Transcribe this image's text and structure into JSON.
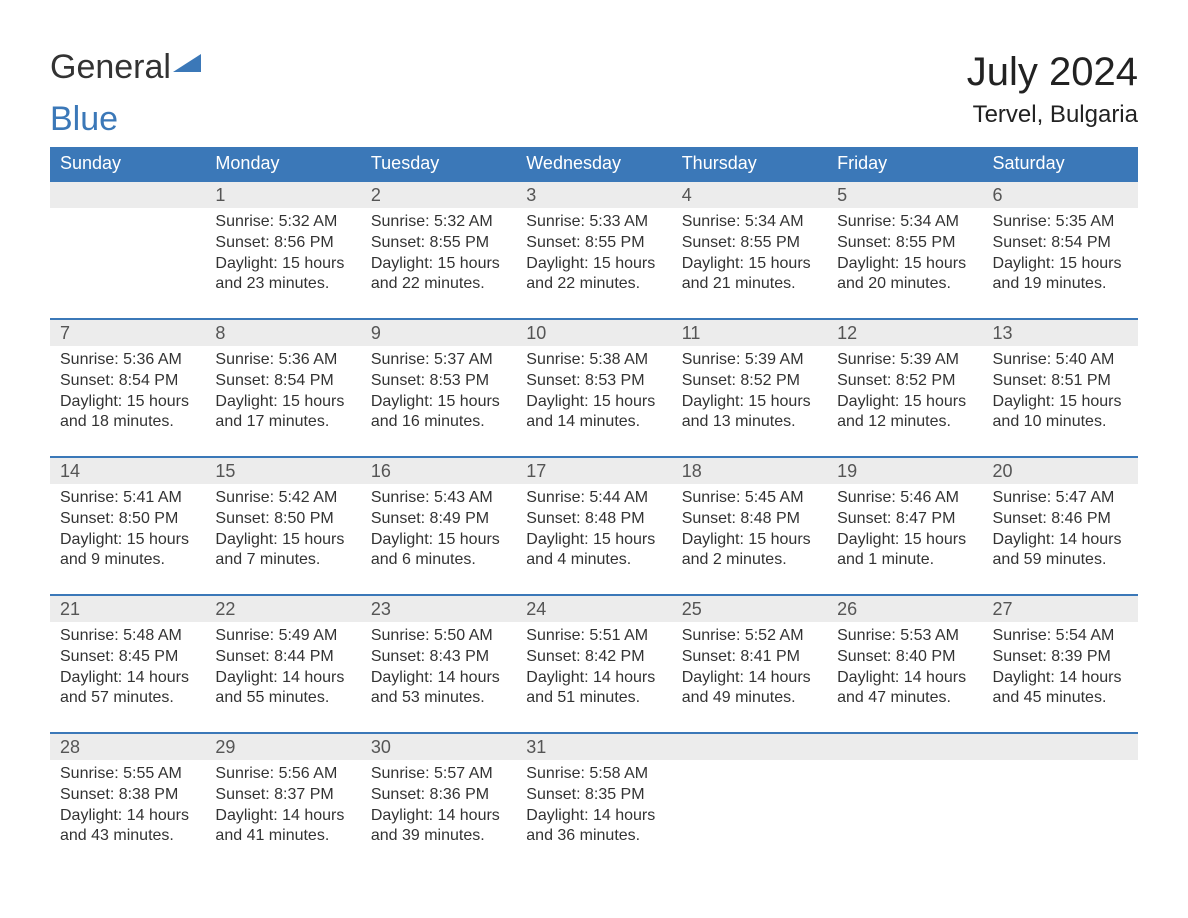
{
  "logo": {
    "word1": "General",
    "word2": "Blue"
  },
  "title": "July 2024",
  "location": "Tervel, Bulgaria",
  "colors": {
    "header_bg": "#3b78b8",
    "header_text": "#ffffff",
    "daynum_bg": "#ececec",
    "row_border": "#3b78b8",
    "text": "#333333",
    "logo_blue": "#3b78b8"
  },
  "weekdays": [
    "Sunday",
    "Monday",
    "Tuesday",
    "Wednesday",
    "Thursday",
    "Friday",
    "Saturday"
  ],
  "weeks": [
    [
      {
        "blank": true
      },
      {
        "day": "1",
        "sunrise": "Sunrise: 5:32 AM",
        "sunset": "Sunset: 8:56 PM",
        "d1": "Daylight: 15 hours",
        "d2": "and 23 minutes."
      },
      {
        "day": "2",
        "sunrise": "Sunrise: 5:32 AM",
        "sunset": "Sunset: 8:55 PM",
        "d1": "Daylight: 15 hours",
        "d2": "and 22 minutes."
      },
      {
        "day": "3",
        "sunrise": "Sunrise: 5:33 AM",
        "sunset": "Sunset: 8:55 PM",
        "d1": "Daylight: 15 hours",
        "d2": "and 22 minutes."
      },
      {
        "day": "4",
        "sunrise": "Sunrise: 5:34 AM",
        "sunset": "Sunset: 8:55 PM",
        "d1": "Daylight: 15 hours",
        "d2": "and 21 minutes."
      },
      {
        "day": "5",
        "sunrise": "Sunrise: 5:34 AM",
        "sunset": "Sunset: 8:55 PM",
        "d1": "Daylight: 15 hours",
        "d2": "and 20 minutes."
      },
      {
        "day": "6",
        "sunrise": "Sunrise: 5:35 AM",
        "sunset": "Sunset: 8:54 PM",
        "d1": "Daylight: 15 hours",
        "d2": "and 19 minutes."
      }
    ],
    [
      {
        "day": "7",
        "sunrise": "Sunrise: 5:36 AM",
        "sunset": "Sunset: 8:54 PM",
        "d1": "Daylight: 15 hours",
        "d2": "and 18 minutes."
      },
      {
        "day": "8",
        "sunrise": "Sunrise: 5:36 AM",
        "sunset": "Sunset: 8:54 PM",
        "d1": "Daylight: 15 hours",
        "d2": "and 17 minutes."
      },
      {
        "day": "9",
        "sunrise": "Sunrise: 5:37 AM",
        "sunset": "Sunset: 8:53 PM",
        "d1": "Daylight: 15 hours",
        "d2": "and 16 minutes."
      },
      {
        "day": "10",
        "sunrise": "Sunrise: 5:38 AM",
        "sunset": "Sunset: 8:53 PM",
        "d1": "Daylight: 15 hours",
        "d2": "and 14 minutes."
      },
      {
        "day": "11",
        "sunrise": "Sunrise: 5:39 AM",
        "sunset": "Sunset: 8:52 PM",
        "d1": "Daylight: 15 hours",
        "d2": "and 13 minutes."
      },
      {
        "day": "12",
        "sunrise": "Sunrise: 5:39 AM",
        "sunset": "Sunset: 8:52 PM",
        "d1": "Daylight: 15 hours",
        "d2": "and 12 minutes."
      },
      {
        "day": "13",
        "sunrise": "Sunrise: 5:40 AM",
        "sunset": "Sunset: 8:51 PM",
        "d1": "Daylight: 15 hours",
        "d2": "and 10 minutes."
      }
    ],
    [
      {
        "day": "14",
        "sunrise": "Sunrise: 5:41 AM",
        "sunset": "Sunset: 8:50 PM",
        "d1": "Daylight: 15 hours",
        "d2": "and 9 minutes."
      },
      {
        "day": "15",
        "sunrise": "Sunrise: 5:42 AM",
        "sunset": "Sunset: 8:50 PM",
        "d1": "Daylight: 15 hours",
        "d2": "and 7 minutes."
      },
      {
        "day": "16",
        "sunrise": "Sunrise: 5:43 AM",
        "sunset": "Sunset: 8:49 PM",
        "d1": "Daylight: 15 hours",
        "d2": "and 6 minutes."
      },
      {
        "day": "17",
        "sunrise": "Sunrise: 5:44 AM",
        "sunset": "Sunset: 8:48 PM",
        "d1": "Daylight: 15 hours",
        "d2": "and 4 minutes."
      },
      {
        "day": "18",
        "sunrise": "Sunrise: 5:45 AM",
        "sunset": "Sunset: 8:48 PM",
        "d1": "Daylight: 15 hours",
        "d2": "and 2 minutes."
      },
      {
        "day": "19",
        "sunrise": "Sunrise: 5:46 AM",
        "sunset": "Sunset: 8:47 PM",
        "d1": "Daylight: 15 hours",
        "d2": "and 1 minute."
      },
      {
        "day": "20",
        "sunrise": "Sunrise: 5:47 AM",
        "sunset": "Sunset: 8:46 PM",
        "d1": "Daylight: 14 hours",
        "d2": "and 59 minutes."
      }
    ],
    [
      {
        "day": "21",
        "sunrise": "Sunrise: 5:48 AM",
        "sunset": "Sunset: 8:45 PM",
        "d1": "Daylight: 14 hours",
        "d2": "and 57 minutes."
      },
      {
        "day": "22",
        "sunrise": "Sunrise: 5:49 AM",
        "sunset": "Sunset: 8:44 PM",
        "d1": "Daylight: 14 hours",
        "d2": "and 55 minutes."
      },
      {
        "day": "23",
        "sunrise": "Sunrise: 5:50 AM",
        "sunset": "Sunset: 8:43 PM",
        "d1": "Daylight: 14 hours",
        "d2": "and 53 minutes."
      },
      {
        "day": "24",
        "sunrise": "Sunrise: 5:51 AM",
        "sunset": "Sunset: 8:42 PM",
        "d1": "Daylight: 14 hours",
        "d2": "and 51 minutes."
      },
      {
        "day": "25",
        "sunrise": "Sunrise: 5:52 AM",
        "sunset": "Sunset: 8:41 PM",
        "d1": "Daylight: 14 hours",
        "d2": "and 49 minutes."
      },
      {
        "day": "26",
        "sunrise": "Sunrise: 5:53 AM",
        "sunset": "Sunset: 8:40 PM",
        "d1": "Daylight: 14 hours",
        "d2": "and 47 minutes."
      },
      {
        "day": "27",
        "sunrise": "Sunrise: 5:54 AM",
        "sunset": "Sunset: 8:39 PM",
        "d1": "Daylight: 14 hours",
        "d2": "and 45 minutes."
      }
    ],
    [
      {
        "day": "28",
        "sunrise": "Sunrise: 5:55 AM",
        "sunset": "Sunset: 8:38 PM",
        "d1": "Daylight: 14 hours",
        "d2": "and 43 minutes."
      },
      {
        "day": "29",
        "sunrise": "Sunrise: 5:56 AM",
        "sunset": "Sunset: 8:37 PM",
        "d1": "Daylight: 14 hours",
        "d2": "and 41 minutes."
      },
      {
        "day": "30",
        "sunrise": "Sunrise: 5:57 AM",
        "sunset": "Sunset: 8:36 PM",
        "d1": "Daylight: 14 hours",
        "d2": "and 39 minutes."
      },
      {
        "day": "31",
        "sunrise": "Sunrise: 5:58 AM",
        "sunset": "Sunset: 8:35 PM",
        "d1": "Daylight: 14 hours",
        "d2": "and 36 minutes."
      },
      {
        "blank": true
      },
      {
        "blank": true
      },
      {
        "blank": true
      }
    ]
  ]
}
